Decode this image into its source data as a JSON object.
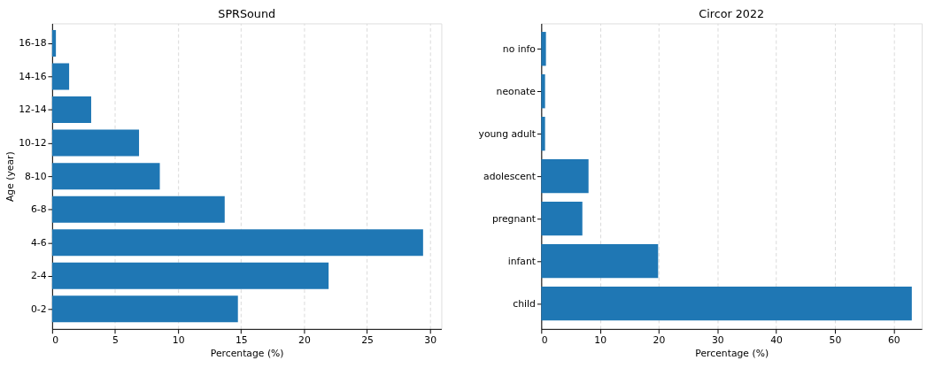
{
  "chart_data": [
    {
      "type": "bar",
      "orientation": "horizontal",
      "title": "SPRSound",
      "xlabel": "Percentage (%)",
      "ylabel": "Age (year)",
      "categories": [
        "16-18",
        "14-16",
        "12-14",
        "10-12",
        "8-10",
        "6-8",
        "4-6",
        "2-4",
        "0-2"
      ],
      "values": [
        0.3,
        1.35,
        3.1,
        6.9,
        8.55,
        13.7,
        29.45,
        21.95,
        14.75
      ],
      "color": "#1f77b4",
      "xlim": [
        0,
        30.9
      ],
      "xticks": [
        0,
        5,
        10,
        15,
        20,
        25,
        30
      ],
      "grid": "x"
    },
    {
      "type": "bar",
      "orientation": "horizontal",
      "title": "Circor 2022",
      "xlabel": "Percentage (%)",
      "categories": [
        "no info",
        "neonate",
        "young adult",
        "adolescent",
        "pregnant",
        "infant",
        "child"
      ],
      "values": [
        0.8,
        0.65,
        0.65,
        8.05,
        7.0,
        19.9,
        63.1
      ],
      "color": "#1f77b4",
      "xlim": [
        0,
        64.8
      ],
      "xticks": [
        0,
        10,
        20,
        30,
        40,
        50,
        60
      ],
      "grid": "x"
    }
  ]
}
